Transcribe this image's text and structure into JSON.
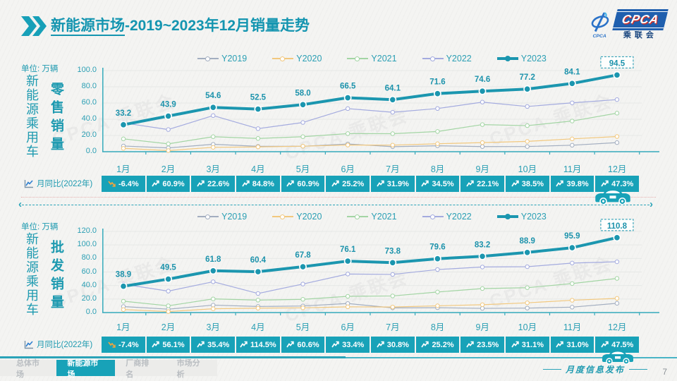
{
  "header": {
    "title_bold": "新能源市场",
    "title_rest": "-2019~2023年12月销量走势",
    "logo": {
      "emblem_text": "CPCA",
      "badge_text": "CPCA",
      "org_name": "乘联会"
    }
  },
  "watermark": {
    "text": "CPCA 乘联会"
  },
  "sections": [
    {
      "unit_label": "单位: 万辆",
      "group_label": "新能源乘用车",
      "metric_label": "零售销量"
    },
    {
      "unit_label": "单位: 万辆",
      "group_label": "新能源乘用车",
      "metric_label": "批发销量"
    }
  ],
  "chart_data": [
    {
      "type": "line",
      "title": "新能源乘用车零售销量",
      "unit": "万辆",
      "legend_position": "top",
      "grid": true,
      "x": [
        "1月",
        "2月",
        "3月",
        "4月",
        "5月",
        "6月",
        "7月",
        "8月",
        "9月",
        "10月",
        "11月",
        "12月"
      ],
      "ylim": [
        0,
        100
      ],
      "y_ticks": [
        "100.0",
        "80.0",
        "60.0",
        "40.0",
        "20.0",
        "0.0"
      ],
      "series": [
        {
          "name": "Y2019",
          "color": "#a3aec0",
          "values": [
            7.0,
            4.7,
            9.1,
            6.6,
            6.7,
            9.5,
            6.2,
            7.3,
            6.3,
            6.4,
            8.0,
            11.2
          ]
        },
        {
          "name": "Y2020",
          "color": "#f2c87e",
          "values": [
            4.1,
            1.4,
            5.4,
            5.9,
            6.8,
            8.2,
            8.1,
            9.8,
            11.2,
            12.7,
            15.8,
            18.7
          ]
        },
        {
          "name": "Y2021",
          "color": "#a3d5a4",
          "values": [
            15.8,
            9.7,
            18.5,
            16.3,
            18.5,
            22.3,
            22.2,
            24.9,
            33.4,
            32.1,
            37.8,
            47.5
          ]
        },
        {
          "name": "Y2022",
          "color": "#a4abdf",
          "values": [
            35.5,
            27.3,
            44.5,
            28.4,
            36.0,
            53.1,
            48.6,
            53.2,
            61.1,
            55.7,
            60.2,
            64.2
          ]
        },
        {
          "name": "Y2023",
          "color": "#1b96af",
          "emphasis": true,
          "labeled": true,
          "values": [
            33.2,
            43.9,
            54.6,
            52.5,
            58.0,
            66.5,
            64.1,
            71.6,
            74.6,
            77.2,
            84.1,
            94.5
          ]
        }
      ],
      "yoy": {
        "label": "月同比(2022年)",
        "values": [
          "-6.4%",
          "60.9%",
          "22.6%",
          "84.8%",
          "60.9%",
          "25.2%",
          "31.9%",
          "34.5%",
          "22.1%",
          "38.5%",
          "39.8%",
          "47.3%"
        ]
      }
    },
    {
      "type": "line",
      "title": "新能源乘用车批发销量",
      "unit": "万辆",
      "legend_position": "top",
      "grid": true,
      "x": [
        "1月",
        "2月",
        "3月",
        "4月",
        "5月",
        "6月",
        "7月",
        "8月",
        "9月",
        "10月",
        "11月",
        "12月"
      ],
      "ylim": [
        0,
        120
      ],
      "y_ticks": [
        "120.0",
        "100.0",
        "80.0",
        "60.0",
        "40.0",
        "20.0",
        "0.0"
      ],
      "series": [
        {
          "name": "Y2019",
          "color": "#a3aec0",
          "values": [
            8.9,
            5.0,
            11.0,
            9.0,
            9.7,
            13.4,
            6.9,
            7.2,
            6.2,
            6.6,
            8.0,
            13.7
          ]
        },
        {
          "name": "Y2020",
          "color": "#f2c87e",
          "values": [
            4.4,
            1.5,
            5.6,
            6.5,
            7.0,
            8.5,
            8.2,
            10.0,
            11.6,
            14.4,
            18.2,
            21.0
          ]
        },
        {
          "name": "Y2021",
          "color": "#a3d5a4",
          "values": [
            16.8,
            10.0,
            20.2,
            18.4,
            19.6,
            24.0,
            24.6,
            30.4,
            35.5,
            36.8,
            42.9,
            50.5
          ]
        },
        {
          "name": "Y2022",
          "color": "#a4abdf",
          "values": [
            42.0,
            31.7,
            45.6,
            28.2,
            42.2,
            57.0,
            56.4,
            63.6,
            67.4,
            67.8,
            73.2,
            75.1
          ]
        },
        {
          "name": "Y2023",
          "color": "#1b96af",
          "emphasis": true,
          "labeled": true,
          "values": [
            38.9,
            49.5,
            61.8,
            60.4,
            67.8,
            76.1,
            73.8,
            79.6,
            83.2,
            88.9,
            95.9,
            110.8
          ]
        }
      ],
      "yoy": {
        "label": "月同比(2022年)",
        "values": [
          "-7.4%",
          "56.1%",
          "35.4%",
          "114.5%",
          "60.6%",
          "33.4%",
          "30.8%",
          "25.2%",
          "23.5%",
          "31.1%",
          "31.0%",
          "47.5%"
        ]
      }
    }
  ],
  "footer": {
    "tabs": [
      {
        "label": "总体市场",
        "active": false
      },
      {
        "label": "新能源市场",
        "active": true
      },
      {
        "label": "厂商排名",
        "active": false
      },
      {
        "label": "市场分析",
        "active": false
      }
    ],
    "stamp": "月度信息发布",
    "page": "7"
  }
}
